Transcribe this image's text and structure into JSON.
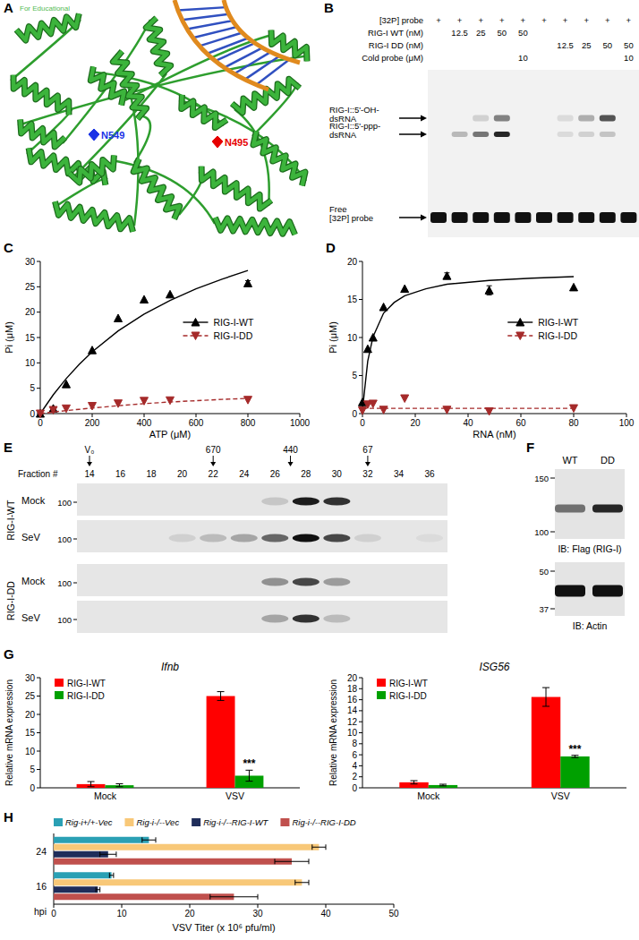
{
  "chart_data": [
    {
      "panel_label": "C",
      "type": "scatter",
      "x_label": "ATP (μM)",
      "y_label": "Pi (μM)",
      "x": [
        0,
        50,
        100,
        200,
        300,
        400,
        500,
        800
      ],
      "fit_x": [
        0,
        50,
        100,
        150,
        200,
        300,
        400,
        500,
        600,
        700,
        800
      ],
      "xlim": [
        0,
        1000
      ],
      "xticks": [
        0,
        200,
        400,
        600,
        800,
        1000
      ],
      "ylim": [
        0,
        30
      ],
      "yticks": [
        0,
        5,
        10,
        15,
        20,
        25,
        30
      ],
      "legend": "center right",
      "series": [
        {
          "name": "RIG-I-WT",
          "color": "#000000",
          "marker": "triangle-up",
          "line_style": "solid",
          "values": [
            0,
            1,
            5.8,
            12.5,
            18.8,
            22.5,
            23.5,
            25.7
          ],
          "errors": [
            null,
            null,
            null,
            null,
            null,
            null,
            null,
            0.5
          ],
          "fit": [
            0,
            3.7,
            6.9,
            9.7,
            12.2,
            16.3,
            19.6,
            22.3,
            24.6,
            26.5,
            28.2
          ]
        },
        {
          "name": "RIG-I-DD",
          "color": "#a52a2a",
          "marker": "triangle-down",
          "line_style": "dashed",
          "values": [
            0,
            0.7,
            1,
            1.5,
            2,
            2.5,
            2.6,
            2.7
          ],
          "fit": [
            0,
            0.3,
            0.6,
            0.85,
            1.1,
            1.55,
            1.95,
            2.3,
            2.55,
            2.8,
            3
          ]
        }
      ]
    },
    {
      "panel_label": "D",
      "type": "scatter",
      "x_label": "RNA (nM)",
      "y_label": "Pi (μM)",
      "x": [
        0,
        2,
        4,
        8,
        16,
        32,
        48,
        80
      ],
      "fit_x": [
        0,
        2,
        4,
        8,
        12,
        16,
        24,
        32,
        48,
        64,
        80
      ],
      "xlim": [
        0,
        100
      ],
      "xticks": [
        0,
        20,
        40,
        60,
        80,
        100
      ],
      "ylim": [
        0,
        20
      ],
      "yticks": [
        0,
        5,
        10,
        15,
        20
      ],
      "legend": "center right",
      "series": [
        {
          "name": "RIG-I-WT",
          "color": "#000000",
          "marker": "triangle-up",
          "line_style": "solid",
          "values": [
            1.5,
            8.5,
            10,
            14,
            16.4,
            18.1,
            16.2,
            16.6
          ],
          "errors": [
            null,
            null,
            null,
            null,
            null,
            0.4,
            0.6,
            null
          ],
          "fit": [
            0.5,
            6.9,
            10.1,
            13.2,
            14.6,
            15.5,
            16.4,
            17,
            17.5,
            17.8,
            18
          ]
        },
        {
          "name": "RIG-I-DD",
          "color": "#a52a2a",
          "marker": "triangle-down",
          "line_style": "dashed",
          "values": [
            0.4,
            1.2,
            1.3,
            0.5,
            2,
            0.5,
            0.3,
            0.7
          ],
          "fit": [
            0.7,
            0.7,
            0.7,
            0.7,
            0.7,
            0.7,
            0.7,
            0.7,
            0.7,
            0.7,
            0.7
          ]
        }
      ]
    },
    {
      "panel_label": "G",
      "type": "bar",
      "title": "Ifnb",
      "y_label": "Relative mRNA expression",
      "categories": [
        "Mock",
        "VSV"
      ],
      "ylim": [
        0,
        30
      ],
      "yticks": [
        0,
        5,
        10,
        15,
        20,
        25,
        30
      ],
      "legend": "upper left",
      "series": [
        {
          "name": "RIG-I-WT",
          "color": "#ff0000",
          "values": [
            1,
            25
          ],
          "errors": [
            0.7,
            1.2
          ]
        },
        {
          "name": "RIG-I-DD",
          "color": "#00a000",
          "values": [
            0.7,
            3.3
          ],
          "errors": [
            0.4,
            1.5
          ]
        }
      ],
      "annotations": [
        {
          "text": "***",
          "series": 1,
          "category": 1
        }
      ]
    },
    {
      "type": "bar",
      "title": "ISG56",
      "y_label": "Relative mRNA expression",
      "categories": [
        "Mock",
        "VSV"
      ],
      "ylim": [
        0,
        20
      ],
      "yticks": [
        0,
        2,
        4,
        6,
        8,
        10,
        12,
        14,
        16,
        18,
        20
      ],
      "legend": "upper left",
      "series": [
        {
          "name": "RIG-I-WT",
          "color": "#ff0000",
          "values": [
            1,
            16.5
          ],
          "errors": [
            0.3,
            1.7
          ]
        },
        {
          "name": "RIG-I-DD",
          "color": "#00a000",
          "values": [
            0.5,
            5.7
          ],
          "errors": [
            0.15,
            0.2
          ]
        }
      ],
      "annotations": [
        {
          "text": "***",
          "series": 1,
          "category": 1
        }
      ]
    },
    {
      "panel_label": "H",
      "type": "bar",
      "orientation": "horizontal",
      "x_label": "VSV Titer (x 10⁶ pfu/ml)",
      "y_label": "hpi",
      "categories": [
        "24",
        "16"
      ],
      "xlim": [
        0,
        50
      ],
      "xticks": [
        0,
        10,
        20,
        30,
        40,
        50
      ],
      "legend": "top",
      "series": [
        {
          "name": "Rig-i+/+-Vec",
          "color": "#2aa0b4",
          "values": [
            14,
            8.5
          ],
          "errors": [
            1,
            0.3
          ]
        },
        {
          "name": "Rig-i-/--Vec",
          "color": "#f8c878",
          "values": [
            39,
            36.5
          ],
          "errors": [
            1,
            1
          ]
        },
        {
          "name": "Rig-i-/--RIG-I-WT",
          "color": "#1f2d5a",
          "values": [
            8,
            6.5
          ],
          "errors": [
            1.2,
            0.3
          ]
        },
        {
          "name": "Rig-i-/--RIG-I-DD",
          "color": "#c0504d",
          "values": [
            35,
            26.5
          ],
          "errors": [
            2.5,
            3.5
          ]
        }
      ]
    }
  ],
  "panels": {
    "A": {
      "label": "A",
      "watermark": "For Educational",
      "residues": [
        {
          "label": "N549",
          "color": "#1a33e6"
        },
        {
          "label": "N495",
          "color": "#e60000"
        }
      ]
    },
    "B": {
      "label": "B",
      "rows": [
        {
          "label": "[32P] probe",
          "cells": [
            "+",
            "+",
            "+",
            "+",
            "+",
            "+",
            "+",
            "+",
            "+",
            "+"
          ]
        },
        {
          "label": "RIG-I WT (nM)",
          "cells": [
            null,
            12.5,
            25,
            50,
            50,
            null,
            null,
            null,
            null,
            null
          ]
        },
        {
          "label": "RIG-I DD (nM)",
          "cells": [
            null,
            null,
            null,
            null,
            null,
            null,
            12.5,
            25,
            50,
            50
          ]
        },
        {
          "label": "Cold probe (μM)",
          "cells": [
            null,
            null,
            null,
            null,
            10,
            null,
            null,
            null,
            null,
            10
          ]
        }
      ],
      "bands": [
        {
          "label": [
            "RIG-I::5'-OH-",
            "dsRNA"
          ],
          "intensity": [
            0,
            0,
            0.15,
            0.5,
            0,
            0,
            0.1,
            0.3,
            0.7,
            0
          ]
        },
        {
          "label": [
            "RIG-I::5'-ppp-",
            "dsRNA"
          ],
          "intensity": [
            0,
            0.25,
            0.55,
            0.9,
            0,
            0,
            0.1,
            0.15,
            0.2,
            0
          ]
        },
        {
          "label": [
            "Free",
            "[32P] probe"
          ],
          "intensity": [
            1,
            1,
            1,
            1,
            1,
            1,
            1,
            1,
            1,
            1
          ]
        }
      ]
    },
    "E": {
      "label": "E",
      "fraction_label": "Fraction #",
      "fractions": [
        14,
        16,
        18,
        20,
        22,
        24,
        26,
        28,
        30,
        32,
        34,
        36
      ],
      "standards": [
        {
          "label": "V₀",
          "fraction": 14
        },
        {
          "label": "670",
          "fraction": 22
        },
        {
          "label": "440",
          "fraction": 27
        },
        {
          "label": "67",
          "fraction": 32
        }
      ],
      "groups": [
        {
          "label": "RIG-I-WT",
          "rows": [
            {
              "label": "Mock",
              "marker": 100,
              "bands": [
                0,
                0,
                0,
                0,
                0,
                0,
                0.15,
                0.95,
                0.85,
                0,
                0,
                0
              ]
            },
            {
              "label": "SeV",
              "marker": 100,
              "bands": [
                0,
                0,
                0,
                0.1,
                0.2,
                0.3,
                0.6,
                1,
                0.75,
                0.1,
                0,
                0.05
              ]
            }
          ]
        },
        {
          "label": "RIG-I-DD",
          "rows": [
            {
              "label": "Mock",
              "marker": 100,
              "bands": [
                0,
                0,
                0,
                0,
                0,
                0,
                0.4,
                0.75,
                0.35,
                0,
                0,
                0
              ]
            },
            {
              "label": "SeV",
              "marker": 100,
              "bands": [
                0,
                0,
                0,
                0,
                0,
                0,
                0.3,
                0.85,
                0.2,
                0,
                0,
                0
              ]
            }
          ]
        }
      ]
    },
    "F": {
      "label": "F",
      "lanes": [
        "WT",
        "DD"
      ],
      "blots": [
        {
          "caption": "IB: Flag (RIG-I)",
          "markers": [
            150,
            100
          ],
          "bands": [
            0.55,
            0.9
          ]
        },
        {
          "caption": "IB: Actin",
          "markers": [
            50,
            37
          ],
          "bands": [
            1,
            1
          ]
        }
      ]
    }
  }
}
